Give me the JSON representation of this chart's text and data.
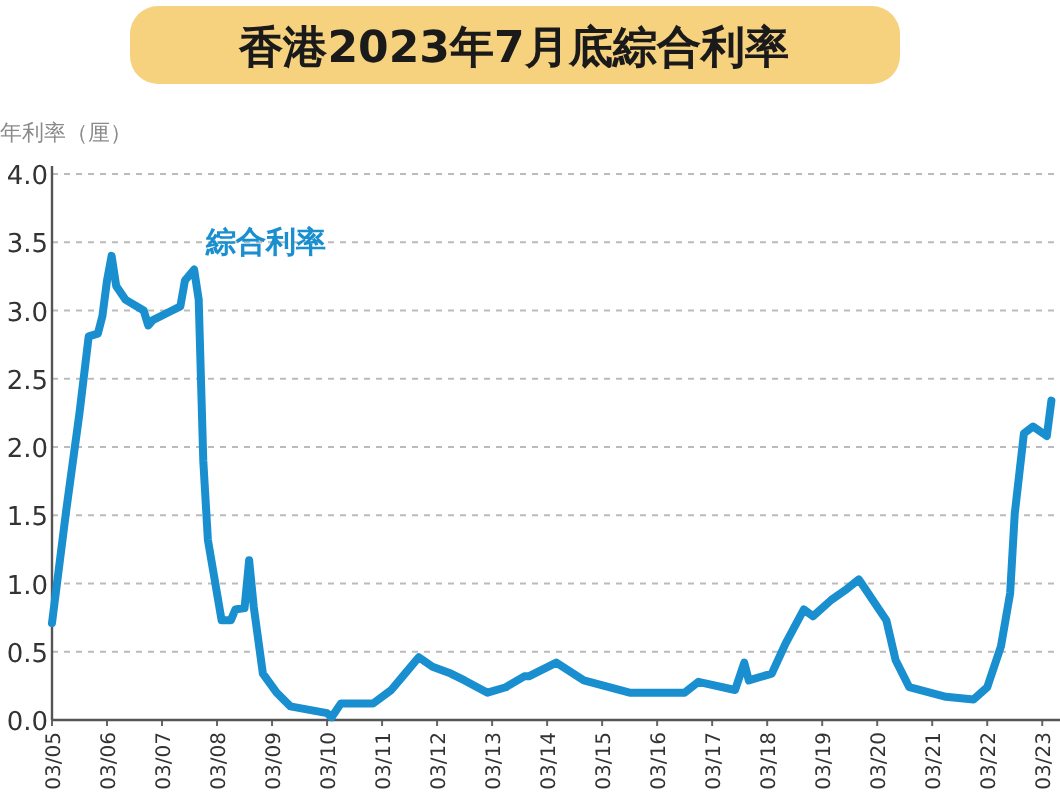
{
  "chart_data": {
    "type": "line",
    "title": "香港2023年7月底綜合利率",
    "ylabel": "年利率（厘）",
    "xlim": [
      "2005-03",
      "2023-06"
    ],
    "xticks": [
      {
        "value": "2005-03",
        "label": "03/05"
      },
      {
        "value": "2006-03",
        "label": "03/06"
      },
      {
        "value": "2007-03",
        "label": "03/07"
      },
      {
        "value": "2008-03",
        "label": "03/08"
      },
      {
        "value": "2009-03",
        "label": "03/09"
      },
      {
        "value": "2010-03",
        "label": "03/10"
      },
      {
        "value": "2011-03",
        "label": "03/11"
      },
      {
        "value": "2012-03",
        "label": "03/12"
      },
      {
        "value": "2013-03",
        "label": "03/13"
      },
      {
        "value": "2014-03",
        "label": "03/14"
      },
      {
        "value": "2015-03",
        "label": "03/15"
      },
      {
        "value": "2016-03",
        "label": "03/16"
      },
      {
        "value": "2017-03",
        "label": "03/17"
      },
      {
        "value": "2018-03",
        "label": "03/18"
      },
      {
        "value": "2019-03",
        "label": "03/19"
      },
      {
        "value": "2020-03",
        "label": "03/20"
      },
      {
        "value": "2021-03",
        "label": "03/21"
      },
      {
        "value": "2022-03",
        "label": "03/22"
      },
      {
        "value": "2023-03",
        "label": "03/23"
      }
    ],
    "ylim": [
      0,
      4
    ],
    "yticks": [
      {
        "value": 0,
        "label": "0.0"
      },
      {
        "value": 0.5,
        "label": "0.5"
      },
      {
        "value": 1,
        "label": "1.0"
      },
      {
        "value": 1.5,
        "label": "1.5"
      },
      {
        "value": 2,
        "label": "2.0"
      },
      {
        "value": 2.5,
        "label": "2.5"
      },
      {
        "value": 3,
        "label": "3.0"
      },
      {
        "value": 3.5,
        "label": "3.5"
      },
      {
        "value": 4,
        "label": "4.0"
      }
    ],
    "grid": "y",
    "legend": false,
    "marker": "none",
    "line_style": "solid",
    "series": [
      {
        "name": "綜合利率",
        "color": "#1a8fd0",
        "x": [
          "2005-03",
          "2005-06",
          "2005-09",
          "2005-11",
          "2006-01",
          "2006-02",
          "2006-03",
          "2006-04",
          "2006-05",
          "2006-07",
          "2006-11",
          "2006-12",
          "2007-01",
          "2007-04",
          "2007-07",
          "2007-08",
          "2007-10",
          "2007-11",
          "2007-12",
          "2008-01",
          "2008-04",
          "2008-06",
          "2008-07",
          "2008-09",
          "2008-10",
          "2008-11",
          "2009-01",
          "2009-04",
          "2009-07",
          "2010-03",
          "2010-04",
          "2010-06",
          "2011-01",
          "2011-05",
          "2011-08",
          "2011-11",
          "2012-02",
          "2012-06",
          "2012-09",
          "2013-02",
          "2013-06",
          "2013-10",
          "2013-11",
          "2014-05",
          "2014-11",
          "2015-09",
          "2016-09",
          "2016-12",
          "2017-08",
          "2017-10",
          "2017-11",
          "2018-04",
          "2018-07",
          "2018-11",
          "2019-01",
          "2019-05",
          "2019-08",
          "2019-11",
          "2019-12",
          "2020-05",
          "2020-07",
          "2020-10",
          "2021-06",
          "2021-12",
          "2022-03",
          "2022-06",
          "2022-08",
          "2022-09",
          "2022-11",
          "2023-01",
          "2023-04",
          "2023-05"
        ],
        "values": [
          0.71,
          1.51,
          2.25,
          2.81,
          2.83,
          2.96,
          3.22,
          3.4,
          3.18,
          3.08,
          3.0,
          2.89,
          2.93,
          2.98,
          3.03,
          3.22,
          3.3,
          3.08,
          1.9,
          1.32,
          0.73,
          0.73,
          0.81,
          0.82,
          1.17,
          0.83,
          0.34,
          0.2,
          0.1,
          0.05,
          0.02,
          0.12,
          0.12,
          0.22,
          0.34,
          0.46,
          0.39,
          0.34,
          0.29,
          0.2,
          0.24,
          0.32,
          0.32,
          0.42,
          0.29,
          0.2,
          0.2,
          0.28,
          0.22,
          0.42,
          0.29,
          0.34,
          0.56,
          0.81,
          0.76,
          0.88,
          0.95,
          1.03,
          0.98,
          0.73,
          0.44,
          0.24,
          0.17,
          0.15,
          0.24,
          0.54,
          0.93,
          1.51,
          2.1,
          2.15,
          2.08,
          2.34
        ]
      }
    ]
  }
}
